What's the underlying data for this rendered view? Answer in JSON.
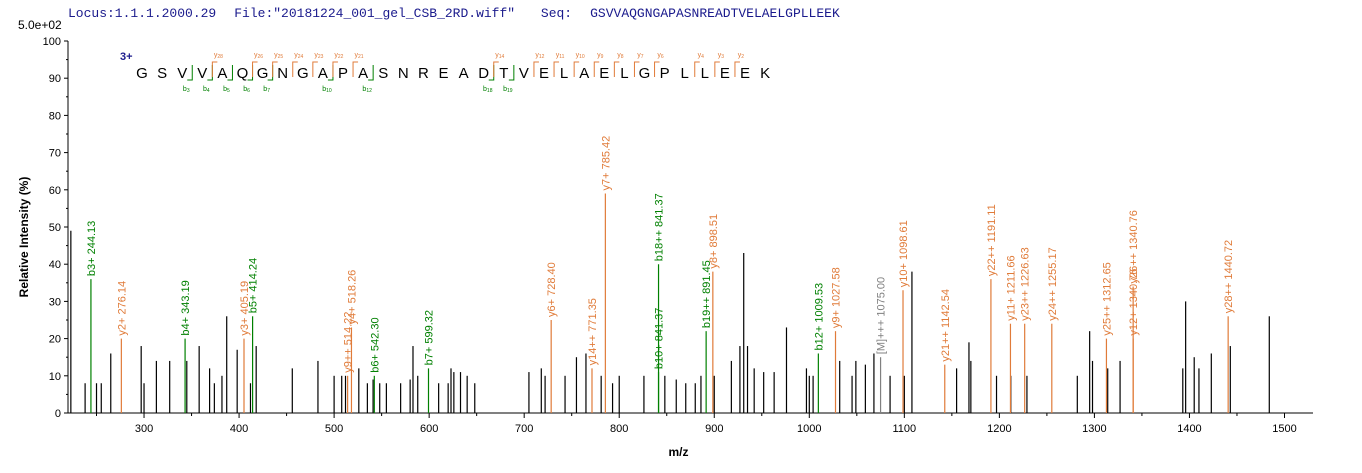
{
  "header": {
    "locus": "Locus:1.1.1.2000.29",
    "file": "File:\"20181224_001_gel_CSB_2RD.wiff\"",
    "seq_label": "Seq:",
    "sequence": "GSVVAQGNGAPASNREADTVELAELGPLLEEK"
  },
  "scale_label": "5.0e+02",
  "charge_label": "3+",
  "colors": {
    "b_ion": "#008000",
    "y_ion": "#e07b39",
    "other": "#000000",
    "precursor": "#808080",
    "seq_marker": "#1a1a8c"
  },
  "b_markers": [
    {
      "idx": 2,
      "num": "3"
    },
    {
      "idx": 3,
      "num": "4"
    },
    {
      "idx": 4,
      "num": "5"
    },
    {
      "idx": 5,
      "num": "6"
    },
    {
      "idx": 6,
      "num": "7"
    },
    {
      "idx": 9,
      "num": "10"
    },
    {
      "idx": 11,
      "num": "12"
    },
    {
      "idx": 17,
      "num": "18"
    },
    {
      "idx": 18,
      "num": "19"
    }
  ],
  "y_markers": [
    {
      "idx": 4,
      "num": "28"
    },
    {
      "idx": 6,
      "num": "26"
    },
    {
      "idx": 7,
      "num": "25"
    },
    {
      "idx": 8,
      "num": "24"
    },
    {
      "idx": 9,
      "num": "23"
    },
    {
      "idx": 10,
      "num": "22"
    },
    {
      "idx": 11,
      "num": "21"
    },
    {
      "idx": 18,
      "num": "14"
    },
    {
      "idx": 20,
      "num": "12"
    },
    {
      "idx": 21,
      "num": "11"
    },
    {
      "idx": 22,
      "num": "10"
    },
    {
      "idx": 23,
      "num": "9"
    },
    {
      "idx": 24,
      "num": "8"
    },
    {
      "idx": 25,
      "num": "7"
    },
    {
      "idx": 26,
      "num": "6"
    },
    {
      "idx": 28,
      "num": "4"
    },
    {
      "idx": 29,
      "num": "3"
    },
    {
      "idx": 30,
      "num": "2"
    }
  ],
  "chart_data": {
    "type": "bar",
    "title": "",
    "xlabel": "m/z",
    "ylabel": "Relative   Intensity (%)",
    "xlim": [
      220,
      1530
    ],
    "ylim": [
      0,
      100
    ],
    "xticks": [
      300,
      400,
      500,
      600,
      700,
      800,
      900,
      1000,
      1100,
      1200,
      1300,
      1400,
      1500
    ],
    "yticks": [
      0,
      10,
      20,
      30,
      40,
      50,
      60,
      70,
      80,
      90,
      100
    ],
    "unlabeled_peaks": [
      {
        "x": 223,
        "y": 49
      },
      {
        "x": 238,
        "y": 8
      },
      {
        "x": 250,
        "y": 8
      },
      {
        "x": 255,
        "y": 8
      },
      {
        "x": 265,
        "y": 16
      },
      {
        "x": 297,
        "y": 18
      },
      {
        "x": 300,
        "y": 8
      },
      {
        "x": 313,
        "y": 14
      },
      {
        "x": 327,
        "y": 14
      },
      {
        "x": 345,
        "y": 14
      },
      {
        "x": 358,
        "y": 18
      },
      {
        "x": 369,
        "y": 12
      },
      {
        "x": 374,
        "y": 8
      },
      {
        "x": 382,
        "y": 10
      },
      {
        "x": 387,
        "y": 26
      },
      {
        "x": 398,
        "y": 17
      },
      {
        "x": 412,
        "y": 8
      },
      {
        "x": 418,
        "y": 18
      },
      {
        "x": 456,
        "y": 12
      },
      {
        "x": 483,
        "y": 14
      },
      {
        "x": 500,
        "y": 10
      },
      {
        "x": 508,
        "y": 10
      },
      {
        "x": 512,
        "y": 10
      },
      {
        "x": 526,
        "y": 12
      },
      {
        "x": 535,
        "y": 8
      },
      {
        "x": 541,
        "y": 9
      },
      {
        "x": 548,
        "y": 8
      },
      {
        "x": 555,
        "y": 8
      },
      {
        "x": 570,
        "y": 8
      },
      {
        "x": 580,
        "y": 9
      },
      {
        "x": 583,
        "y": 18
      },
      {
        "x": 588,
        "y": 10
      },
      {
        "x": 610,
        "y": 8
      },
      {
        "x": 620,
        "y": 8
      },
      {
        "x": 623,
        "y": 12
      },
      {
        "x": 626,
        "y": 11
      },
      {
        "x": 633,
        "y": 11
      },
      {
        "x": 640,
        "y": 10
      },
      {
        "x": 648,
        "y": 8
      },
      {
        "x": 705,
        "y": 11
      },
      {
        "x": 718,
        "y": 12
      },
      {
        "x": 722,
        "y": 10
      },
      {
        "x": 743,
        "y": 10
      },
      {
        "x": 755,
        "y": 15
      },
      {
        "x": 765,
        "y": 16
      },
      {
        "x": 781,
        "y": 10
      },
      {
        "x": 793,
        "y": 8
      },
      {
        "x": 800,
        "y": 10
      },
      {
        "x": 826,
        "y": 10
      },
      {
        "x": 848,
        "y": 10
      },
      {
        "x": 860,
        "y": 9
      },
      {
        "x": 870,
        "y": 8
      },
      {
        "x": 880,
        "y": 8
      },
      {
        "x": 886,
        "y": 10
      },
      {
        "x": 900,
        "y": 10
      },
      {
        "x": 918,
        "y": 14
      },
      {
        "x": 927,
        "y": 18
      },
      {
        "x": 931,
        "y": 43
      },
      {
        "x": 935,
        "y": 18
      },
      {
        "x": 942,
        "y": 12
      },
      {
        "x": 952,
        "y": 11
      },
      {
        "x": 963,
        "y": 11
      },
      {
        "x": 976,
        "y": 23
      },
      {
        "x": 997,
        "y": 12
      },
      {
        "x": 1000,
        "y": 10
      },
      {
        "x": 1004,
        "y": 10
      },
      {
        "x": 1032,
        "y": 14
      },
      {
        "x": 1045,
        "y": 10
      },
      {
        "x": 1049,
        "y": 14
      },
      {
        "x": 1059,
        "y": 13
      },
      {
        "x": 1068,
        "y": 16
      },
      {
        "x": 1085,
        "y": 10
      },
      {
        "x": 1100,
        "y": 10
      },
      {
        "x": 1108,
        "y": 38
      },
      {
        "x": 1155,
        "y": 12
      },
      {
        "x": 1168,
        "y": 19
      },
      {
        "x": 1170,
        "y": 14
      },
      {
        "x": 1197,
        "y": 10
      },
      {
        "x": 1212,
        "y": 10
      },
      {
        "x": 1229,
        "y": 10
      },
      {
        "x": 1282,
        "y": 10
      },
      {
        "x": 1295,
        "y": 22
      },
      {
        "x": 1298,
        "y": 14
      },
      {
        "x": 1314,
        "y": 12
      },
      {
        "x": 1327,
        "y": 14
      },
      {
        "x": 1393,
        "y": 12
      },
      {
        "x": 1396,
        "y": 30
      },
      {
        "x": 1405,
        "y": 15
      },
      {
        "x": 1410,
        "y": 12
      },
      {
        "x": 1423,
        "y": 16
      },
      {
        "x": 1443,
        "y": 18
      },
      {
        "x": 1484,
        "y": 26
      }
    ],
    "labeled_peaks": [
      {
        "x": 244.13,
        "y": 36,
        "ion": "b",
        "label": "b3+ 244.13"
      },
      {
        "x": 276.14,
        "y": 20,
        "ion": "y",
        "label": "y2+ 276.14"
      },
      {
        "x": 343.19,
        "y": 20,
        "ion": "b",
        "label": "b4+ 343.19"
      },
      {
        "x": 405.19,
        "y": 20,
        "ion": "y",
        "label": "y3+ 405.19"
      },
      {
        "x": 414.24,
        "y": 26,
        "ion": "b",
        "label": "b5+ 414.24"
      },
      {
        "x": 514.22,
        "y": 10,
        "ion": "y",
        "label": "y9++ 514.22"
      },
      {
        "x": 518.26,
        "y": 23,
        "ion": "y",
        "label": "y4+ 518.26"
      },
      {
        "x": 542.3,
        "y": 10,
        "ion": "b",
        "label": "b6+ 542.30"
      },
      {
        "x": 599.32,
        "y": 12,
        "ion": "b",
        "label": "b7+ 599.32"
      },
      {
        "x": 728.4,
        "y": 25,
        "ion": "y",
        "label": "y6+ 728.40"
      },
      {
        "x": 771.35,
        "y": 12,
        "ion": "y",
        "label": "y14++ 771.35"
      },
      {
        "x": 785.42,
        "y": 59,
        "ion": "y",
        "label": "y7+ 785.42"
      },
      {
        "x": 841.37,
        "y": 11,
        "ion": "b",
        "label": "b10+ 841.37"
      },
      {
        "x": 841.37,
        "y": 40,
        "ion": "b",
        "label": "b18++ 841.37"
      },
      {
        "x": 891.45,
        "y": 22,
        "ion": "b",
        "label": "b19++ 891.45"
      },
      {
        "x": 898.51,
        "y": 38,
        "ion": "y",
        "label": "y8+ 898.51"
      },
      {
        "x": 1009.53,
        "y": 16,
        "ion": "b",
        "label": "b12+ 1009.53"
      },
      {
        "x": 1027.58,
        "y": 22,
        "ion": "y",
        "label": "y9+ 1027.58"
      },
      {
        "x": 1075.0,
        "y": 15,
        "ion": "m",
        "label": "[M]+++ 1075.00"
      },
      {
        "x": 1098.61,
        "y": 33,
        "ion": "y",
        "label": "y10+ 1098.61"
      },
      {
        "x": 1142.54,
        "y": 13,
        "ion": "y",
        "label": "y21++ 1142.54"
      },
      {
        "x": 1191.11,
        "y": 36,
        "ion": "y",
        "label": "y22++ 1191.11"
      },
      {
        "x": 1211.66,
        "y": 24,
        "ion": "y",
        "label": "y11+ 1211.66"
      },
      {
        "x": 1226.63,
        "y": 24,
        "ion": "y",
        "label": "y23++ 1226.63"
      },
      {
        "x": 1255.17,
        "y": 24,
        "ion": "y",
        "label": "y24++ 1255.17"
      },
      {
        "x": 1312.65,
        "y": 20,
        "ion": "y",
        "label": "y25++ 1312.65"
      },
      {
        "x": 1340.76,
        "y": 20,
        "ion": "y",
        "label": "y12+ 1340.76"
      },
      {
        "x": 1340.76,
        "y": 34,
        "ion": "y",
        "label": "y26++ 1340.76"
      },
      {
        "x": 1440.72,
        "y": 26,
        "ion": "y",
        "label": "y28++ 1440.72"
      }
    ]
  }
}
